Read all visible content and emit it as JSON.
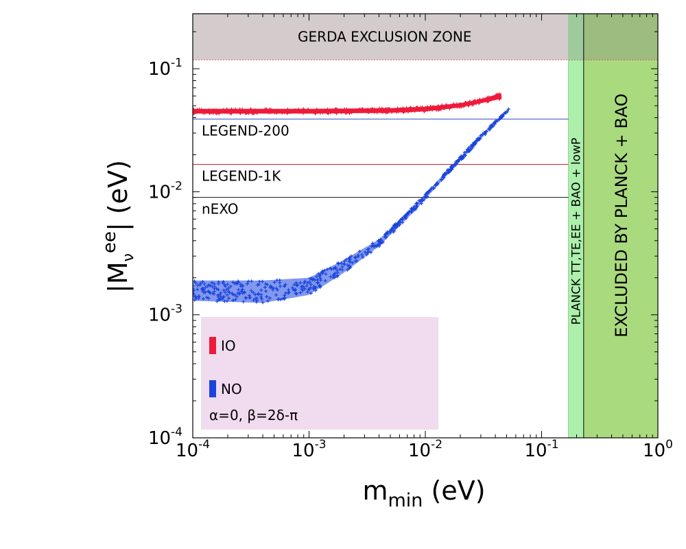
{
  "chart_data": {
    "type": "scatter",
    "xscale": "log",
    "yscale": "log",
    "xlim": [
      0.0001,
      1
    ],
    "ylim": [
      0.0001,
      0.28
    ],
    "xlabel": {
      "main": "m",
      "sub": "min",
      "unit": " (eV)"
    },
    "ylabel": {
      "pre": "|M",
      "sub": "ν",
      "sup": "ee",
      "post": "| (eV)"
    },
    "xticks": [
      {
        "v": 0.0001,
        "base": "10",
        "exp": "-4"
      },
      {
        "v": 0.001,
        "base": "10",
        "exp": "-3"
      },
      {
        "v": 0.01,
        "base": "10",
        "exp": "-2"
      },
      {
        "v": 0.1,
        "base": "10",
        "exp": "-1"
      },
      {
        "v": 1,
        "base": "10",
        "exp": "0"
      }
    ],
    "yticks": [
      {
        "v": 0.0001,
        "base": "10",
        "exp": "-4"
      },
      {
        "v": 0.001,
        "base": "10",
        "exp": "-3"
      },
      {
        "v": 0.01,
        "base": "10",
        "exp": "-2"
      },
      {
        "v": 0.1,
        "base": "10",
        "exp": "-1"
      }
    ],
    "regions": [
      {
        "name": "gerda",
        "label": "GERDA EXCLUSION ZONE",
        "axis": "y",
        "from": 0.118,
        "to": 0.28,
        "color": "#d4cccc",
        "border": "#e06060"
      },
      {
        "name": "planck-lowp",
        "label": "PLANCK TT,TE,EE + BAO + lowP",
        "axis": "x",
        "from": 0.17,
        "to": 0.23,
        "color": "#a8efa8"
      },
      {
        "name": "planck-bao",
        "label": "EXCLUDED BY PLANCK + BAO",
        "axis": "x",
        "from": 0.23,
        "to": 1,
        "color": "#a5d877"
      }
    ],
    "hlines": [
      {
        "name": "legend-200",
        "label": "LEGEND-200",
        "y": 0.039,
        "x_to": 0.17,
        "color": "#3050cc"
      },
      {
        "name": "legend-1k",
        "label": "LEGEND-1K",
        "y": 0.0167,
        "x_to": 0.17,
        "color": "#cc2030"
      },
      {
        "name": "nexo",
        "label": "nEXO",
        "y": 0.009,
        "x_to": 0.17,
        "color": "#111111"
      }
    ],
    "series": [
      {
        "name": "IO",
        "color": "#ee1a3a",
        "upper": [
          [
            0.0001,
            0.0472
          ],
          [
            0.001,
            0.0472
          ],
          [
            0.005,
            0.0478
          ],
          [
            0.01,
            0.049
          ],
          [
            0.02,
            0.0525
          ],
          [
            0.03,
            0.0565
          ],
          [
            0.045,
            0.0635
          ]
        ],
        "lower": [
          [
            0.0001,
            0.0432
          ],
          [
            0.001,
            0.0432
          ],
          [
            0.005,
            0.0438
          ],
          [
            0.01,
            0.045
          ],
          [
            0.02,
            0.0485
          ],
          [
            0.03,
            0.0525
          ],
          [
            0.045,
            0.057
          ]
        ]
      },
      {
        "name": "NO",
        "color": "#1a44dd",
        "upper": [
          [
            0.0001,
            0.0019
          ],
          [
            0.0004,
            0.0019
          ],
          [
            0.001,
            0.002
          ],
          [
            0.002,
            0.0028
          ],
          [
            0.004,
            0.0041
          ],
          [
            0.008,
            0.0077
          ],
          [
            0.015,
            0.0145
          ],
          [
            0.03,
            0.029
          ],
          [
            0.052,
            0.047
          ]
        ],
        "lower": [
          [
            0.0001,
            0.0013
          ],
          [
            0.0004,
            0.00125
          ],
          [
            0.001,
            0.00145
          ],
          [
            0.002,
            0.0022
          ],
          [
            0.004,
            0.0036
          ],
          [
            0.008,
            0.0069
          ],
          [
            0.015,
            0.0133
          ],
          [
            0.03,
            0.0268
          ],
          [
            0.05,
            0.044
          ]
        ]
      }
    ],
    "legend": {
      "position": "bottom-left",
      "note": "α=0, β=2δ-π",
      "entries": [
        "IO",
        "NO"
      ]
    }
  }
}
